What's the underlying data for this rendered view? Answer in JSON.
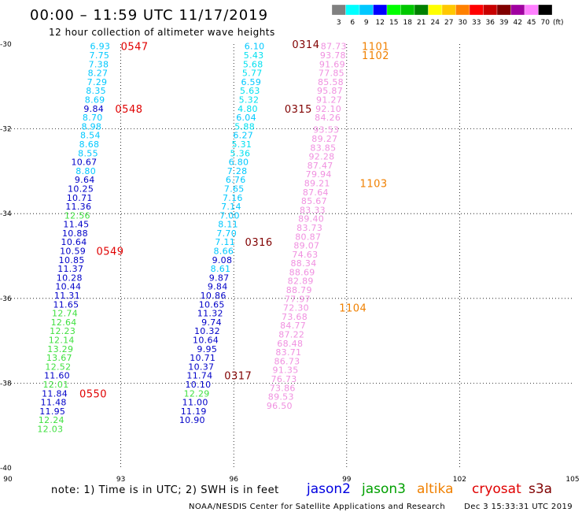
{
  "chart_data": {
    "type": "scatter",
    "title": "00:00 – 11:59 UTC 11/17/2019",
    "subtitle": "12 hour collection of altimeter wave heights",
    "xlim": [
      90,
      105
    ],
    "ylim": [
      -40,
      -30
    ],
    "x_ticks": [
      90,
      93,
      96,
      99,
      102,
      105
    ],
    "x_tick_labels": [
      "90",
      "93",
      "96",
      "99",
      "102",
      "105"
    ],
    "y_ticks": [
      -30,
      -32,
      -34,
      -36,
      -38,
      -40
    ],
    "y_tick_labels": [
      "-30",
      "-32",
      "-34",
      "-36",
      "-38",
      "-40"
    ],
    "grid": "dotted",
    "color_scale": {
      "labels": [
        "3",
        "6",
        "9",
        "12",
        "15",
        "18",
        "21",
        "24",
        "27",
        "30",
        "33",
        "36",
        "39",
        "42",
        "45",
        "70"
      ],
      "colors": [
        "#808080",
        "#00ffff",
        "#00c8ff",
        "#0000ff",
        "#00ff00",
        "#00c800",
        "#008000",
        "#ffff00",
        "#ffc800",
        "#ff8000",
        "#ff0000",
        "#c80000",
        "#800000",
        "#a000a0",
        "#ff80ff",
        "#000000"
      ],
      "unit": "(ft)"
    },
    "tracks": [
      {
        "name": "track-0547",
        "points": [
          {
            "x": 92.72,
            "y": -30.05,
            "v": "6.93",
            "c": "#00c8ff"
          },
          {
            "x": 92.7,
            "y": -30.26,
            "v": "7.75",
            "c": "#00c8ff"
          },
          {
            "x": 92.68,
            "y": -30.47,
            "v": "7.38",
            "c": "#00c8ff"
          },
          {
            "x": 92.66,
            "y": -30.68,
            "v": "8.27",
            "c": "#00c8ff"
          },
          {
            "x": 92.64,
            "y": -30.89,
            "v": "7.29",
            "c": "#00c8ff"
          },
          {
            "x": 92.61,
            "y": -31.1,
            "v": "8.35",
            "c": "#00c8ff"
          },
          {
            "x": 92.58,
            "y": -31.31,
            "v": "8.69",
            "c": "#00c8ff"
          },
          {
            "x": 92.55,
            "y": -31.52,
            "v": "9.84",
            "c": "#0000c8"
          },
          {
            "x": 92.52,
            "y": -31.73,
            "v": "8.70",
            "c": "#00c8ff"
          },
          {
            "x": 92.49,
            "y": -31.94,
            "v": "8.98",
            "c": "#00c8ff"
          },
          {
            "x": 92.46,
            "y": -32.15,
            "v": "8.54",
            "c": "#00c8ff"
          },
          {
            "x": 92.43,
            "y": -32.36,
            "v": "8.68",
            "c": "#00c8ff"
          },
          {
            "x": 92.4,
            "y": -32.57,
            "v": "8.55",
            "c": "#00c8ff"
          },
          {
            "x": 92.37,
            "y": -32.78,
            "v": "10.67",
            "c": "#0000c8"
          },
          {
            "x": 92.34,
            "y": -32.99,
            "v": "8.80",
            "c": "#00c8ff"
          },
          {
            "x": 92.31,
            "y": -33.2,
            "v": "9.64",
            "c": "#0000c8"
          },
          {
            "x": 92.28,
            "y": -33.41,
            "v": "10.25",
            "c": "#0000c8"
          },
          {
            "x": 92.25,
            "y": -33.62,
            "v": "10.71",
            "c": "#0000c8"
          },
          {
            "x": 92.22,
            "y": -33.83,
            "v": "11.36",
            "c": "#0000c8"
          },
          {
            "x": 92.19,
            "y": -34.04,
            "v": "12.56",
            "c": "#40e040"
          },
          {
            "x": 92.16,
            "y": -34.25,
            "v": "11.45",
            "c": "#0000c8"
          },
          {
            "x": 92.13,
            "y": -34.46,
            "v": "10.88",
            "c": "#0000c8"
          },
          {
            "x": 92.1,
            "y": -34.67,
            "v": "10.64",
            "c": "#0000c8"
          },
          {
            "x": 92.07,
            "y": -34.88,
            "v": "10.59",
            "c": "#0000c8"
          },
          {
            "x": 92.04,
            "y": -35.09,
            "v": "10.85",
            "c": "#0000c8"
          },
          {
            "x": 92.01,
            "y": -35.3,
            "v": "11.37",
            "c": "#0000c8"
          },
          {
            "x": 91.98,
            "y": -35.51,
            "v": "10.28",
            "c": "#0000c8"
          },
          {
            "x": 91.95,
            "y": -35.72,
            "v": "10.44",
            "c": "#0000c8"
          },
          {
            "x": 91.92,
            "y": -35.93,
            "v": "11.31",
            "c": "#0000c8"
          },
          {
            "x": 91.89,
            "y": -36.14,
            "v": "11.65",
            "c": "#0000c8"
          },
          {
            "x": 91.86,
            "y": -36.35,
            "v": "12.74",
            "c": "#40e040"
          },
          {
            "x": 91.83,
            "y": -36.56,
            "v": "12.64",
            "c": "#40e040"
          },
          {
            "x": 91.8,
            "y": -36.77,
            "v": "12.23",
            "c": "#40e040"
          },
          {
            "x": 91.77,
            "y": -36.98,
            "v": "12.14",
            "c": "#40e040"
          },
          {
            "x": 91.74,
            "y": -37.19,
            "v": "13.29",
            "c": "#40e040"
          },
          {
            "x": 91.71,
            "y": -37.4,
            "v": "13.67",
            "c": "#40e040"
          },
          {
            "x": 91.68,
            "y": -37.61,
            "v": "12.52",
            "c": "#40e040"
          },
          {
            "x": 91.65,
            "y": -37.82,
            "v": "11.60",
            "c": "#0000c8"
          },
          {
            "x": 91.62,
            "y": -38.03,
            "v": "12.01",
            "c": "#40e040"
          },
          {
            "x": 91.59,
            "y": -38.24,
            "v": "11.84",
            "c": "#0000c8"
          },
          {
            "x": 91.56,
            "y": -38.45,
            "v": "11.48",
            "c": "#0000c8"
          },
          {
            "x": 91.53,
            "y": -38.66,
            "v": "11.95",
            "c": "#0000c8"
          },
          {
            "x": 91.5,
            "y": -38.87,
            "v": "12.24",
            "c": "#40e040"
          },
          {
            "x": 91.47,
            "y": -39.08,
            "v": "12.03",
            "c": "#40e040"
          }
        ]
      },
      {
        "name": "track-0314",
        "points": [
          {
            "x": 96.82,
            "y": -30.05,
            "v": "6.10",
            "c": "#00c8ff"
          },
          {
            "x": 96.8,
            "y": -30.26,
            "v": "5.43",
            "c": "#00e0f0"
          },
          {
            "x": 96.78,
            "y": -30.47,
            "v": "5.68",
            "c": "#00e0f0"
          },
          {
            "x": 96.76,
            "y": -30.68,
            "v": "5.77",
            "c": "#00e0f0"
          },
          {
            "x": 96.73,
            "y": -30.89,
            "v": "6.59",
            "c": "#00c8ff"
          },
          {
            "x": 96.7,
            "y": -31.1,
            "v": "5.63",
            "c": "#00e0f0"
          },
          {
            "x": 96.67,
            "y": -31.31,
            "v": "5.32",
            "c": "#00e0f0"
          },
          {
            "x": 96.64,
            "y": -31.52,
            "v": "4.80",
            "c": "#00e0f0"
          },
          {
            "x": 96.6,
            "y": -31.73,
            "v": "6.04",
            "c": "#00c8ff"
          },
          {
            "x": 96.56,
            "y": -31.94,
            "v": "5.88",
            "c": "#00e0f0"
          },
          {
            "x": 96.52,
            "y": -32.15,
            "v": "6.27",
            "c": "#00c8ff"
          },
          {
            "x": 96.48,
            "y": -32.36,
            "v": "5.31",
            "c": "#00e0f0"
          },
          {
            "x": 96.44,
            "y": -32.57,
            "v": "5.36",
            "c": "#00e0f0"
          },
          {
            "x": 96.4,
            "y": -32.78,
            "v": "6.80",
            "c": "#00c8ff"
          },
          {
            "x": 96.36,
            "y": -32.99,
            "v": "7.28",
            "c": "#00c8ff"
          },
          {
            "x": 96.32,
            "y": -33.2,
            "v": "6.76",
            "c": "#00c8ff"
          },
          {
            "x": 96.28,
            "y": -33.41,
            "v": "7.65",
            "c": "#00c8ff"
          },
          {
            "x": 96.24,
            "y": -33.62,
            "v": "7.16",
            "c": "#00c8ff"
          },
          {
            "x": 96.2,
            "y": -33.83,
            "v": "7.14",
            "c": "#00c8ff"
          },
          {
            "x": 96.16,
            "y": -34.04,
            "v": "7.00",
            "c": "#00c8ff"
          },
          {
            "x": 96.12,
            "y": -34.25,
            "v": "8.11",
            "c": "#00c8ff"
          },
          {
            "x": 96.08,
            "y": -34.46,
            "v": "7.70",
            "c": "#00c8ff"
          },
          {
            "x": 96.04,
            "y": -34.67,
            "v": "7.11",
            "c": "#00c8ff"
          },
          {
            "x": 96.0,
            "y": -34.88,
            "v": "8.66",
            "c": "#00c8ff"
          },
          {
            "x": 95.96,
            "y": -35.09,
            "v": "9.08",
            "c": "#0000c8"
          },
          {
            "x": 95.92,
            "y": -35.3,
            "v": "8.61",
            "c": "#00c8ff"
          },
          {
            "x": 95.88,
            "y": -35.51,
            "v": "9.87",
            "c": "#0000c8"
          },
          {
            "x": 95.84,
            "y": -35.72,
            "v": "9.84",
            "c": "#0000c8"
          },
          {
            "x": 95.8,
            "y": -35.93,
            "v": "10.86",
            "c": "#0000c8"
          },
          {
            "x": 95.76,
            "y": -36.14,
            "v": "10.65",
            "c": "#0000c8"
          },
          {
            "x": 95.72,
            "y": -36.35,
            "v": "11.32",
            "c": "#0000c8"
          },
          {
            "x": 95.68,
            "y": -36.56,
            "v": "9.74",
            "c": "#0000c8"
          },
          {
            "x": 95.64,
            "y": -36.77,
            "v": "10.32",
            "c": "#0000c8"
          },
          {
            "x": 95.6,
            "y": -36.98,
            "v": "10.64",
            "c": "#0000c8"
          },
          {
            "x": 95.56,
            "y": -37.19,
            "v": "9.95",
            "c": "#0000c8"
          },
          {
            "x": 95.52,
            "y": -37.4,
            "v": "10.71",
            "c": "#0000c8"
          },
          {
            "x": 95.48,
            "y": -37.61,
            "v": "10.37",
            "c": "#0000c8"
          },
          {
            "x": 95.44,
            "y": -37.82,
            "v": "11.74",
            "c": "#0000c8"
          },
          {
            "x": 95.4,
            "y": -38.03,
            "v": "10.10",
            "c": "#0000c8"
          },
          {
            "x": 95.36,
            "y": -38.24,
            "v": "12.29",
            "c": "#40e040"
          },
          {
            "x": 95.32,
            "y": -38.45,
            "v": "11.00",
            "c": "#0000c8"
          },
          {
            "x": 95.28,
            "y": -38.66,
            "v": "11.19",
            "c": "#0000c8"
          },
          {
            "x": 95.24,
            "y": -38.87,
            "v": "10.90",
            "c": "#0000c8"
          }
        ]
      },
      {
        "name": "track-1101",
        "points": [
          {
            "x": 99.0,
            "y": -30.05,
            "v": "87.73",
            "c": "#f090e0"
          },
          {
            "x": 98.98,
            "y": -30.26,
            "v": "93.78",
            "c": "#f090e0"
          },
          {
            "x": 98.96,
            "y": -30.47,
            "v": "91.69",
            "c": "#f090e0"
          },
          {
            "x": 98.94,
            "y": -30.68,
            "v": "77.85",
            "c": "#f090e0"
          },
          {
            "x": 98.92,
            "y": -30.89,
            "v": "85.58",
            "c": "#f090e0"
          },
          {
            "x": 98.9,
            "y": -31.1,
            "v": "95.87",
            "c": "#f090e0"
          },
          {
            "x": 98.88,
            "y": -31.31,
            "v": "91.27",
            "c": "#f090e0"
          },
          {
            "x": 98.86,
            "y": -31.52,
            "v": "92.10",
            "c": "#f090e0"
          },
          {
            "x": 98.84,
            "y": -31.73,
            "v": "84.26",
            "c": "#f090e0"
          },
          {
            "x": 98.8,
            "y": -32.02,
            "v": "93.53",
            "c": "#f090e0"
          },
          {
            "x": 98.76,
            "y": -32.23,
            "v": "89.27",
            "c": "#f090e0"
          },
          {
            "x": 98.72,
            "y": -32.44,
            "v": "83.85",
            "c": "#f090e0"
          },
          {
            "x": 98.68,
            "y": -32.65,
            "v": "92.28",
            "c": "#f090e0"
          },
          {
            "x": 98.64,
            "y": -32.86,
            "v": "87.47",
            "c": "#f090e0"
          },
          {
            "x": 98.6,
            "y": -33.07,
            "v": "79.94",
            "c": "#f090e0"
          },
          {
            "x": 98.56,
            "y": -33.28,
            "v": "89.21",
            "c": "#f090e0"
          },
          {
            "x": 98.52,
            "y": -33.49,
            "v": "87.64",
            "c": "#f090e0"
          },
          {
            "x": 98.48,
            "y": -33.7,
            "v": "85.67",
            "c": "#f090e0"
          },
          {
            "x": 98.44,
            "y": -33.91,
            "v": "83.33",
            "c": "#f090e0"
          },
          {
            "x": 98.4,
            "y": -34.12,
            "v": "89.40",
            "c": "#f090e0"
          },
          {
            "x": 98.36,
            "y": -34.33,
            "v": "83.73",
            "c": "#f090e0"
          },
          {
            "x": 98.32,
            "y": -34.54,
            "v": "80.87",
            "c": "#f090e0"
          },
          {
            "x": 98.28,
            "y": -34.75,
            "v": "89.07",
            "c": "#f090e0"
          },
          {
            "x": 98.24,
            "y": -34.96,
            "v": "74.63",
            "c": "#f090e0"
          },
          {
            "x": 98.2,
            "y": -35.17,
            "v": "88.34",
            "c": "#f090e0"
          },
          {
            "x": 98.16,
            "y": -35.38,
            "v": "88.69",
            "c": "#f090e0"
          },
          {
            "x": 98.12,
            "y": -35.59,
            "v": "82.89",
            "c": "#f090e0"
          },
          {
            "x": 98.08,
            "y": -35.8,
            "v": "88.79",
            "c": "#f090e0"
          },
          {
            "x": 98.04,
            "y": -36.01,
            "v": "77.97",
            "c": "#f090e0"
          },
          {
            "x": 98.0,
            "y": -36.22,
            "v": "72.30",
            "c": "#f090e0"
          },
          {
            "x": 97.96,
            "y": -36.43,
            "v": "73.68",
            "c": "#f090e0"
          },
          {
            "x": 97.92,
            "y": -36.64,
            "v": "84.77",
            "c": "#f090e0"
          },
          {
            "x": 97.88,
            "y": -36.85,
            "v": "87.22",
            "c": "#f090e0"
          },
          {
            "x": 97.84,
            "y": -37.06,
            "v": "68.48",
            "c": "#f090e0"
          },
          {
            "x": 97.8,
            "y": -37.27,
            "v": "83.71",
            "c": "#f090e0"
          },
          {
            "x": 97.76,
            "y": -37.48,
            "v": "86.73",
            "c": "#f090e0"
          },
          {
            "x": 97.72,
            "y": -37.69,
            "v": "91.35",
            "c": "#f090e0"
          },
          {
            "x": 97.68,
            "y": -37.9,
            "v": "76.73",
            "c": "#f090e0"
          },
          {
            "x": 97.64,
            "y": -38.11,
            "v": "73.86",
            "c": "#f090e0"
          },
          {
            "x": 97.6,
            "y": -38.32,
            "v": "89.53",
            "c": "#f090e0"
          },
          {
            "x": 97.56,
            "y": -38.53,
            "v": "96.50",
            "c": "#f090e0"
          }
        ]
      }
    ],
    "time_labels": [
      {
        "x": 93.0,
        "y": -30.05,
        "text": "0547",
        "c": "#e00000"
      },
      {
        "x": 92.85,
        "y": -31.52,
        "text": "0548",
        "c": "#e00000"
      },
      {
        "x": 92.35,
        "y": -34.88,
        "text": "0549",
        "c": "#e00000"
      },
      {
        "x": 91.9,
        "y": -38.24,
        "text": "0550",
        "c": "#e00000"
      },
      {
        "x": 97.55,
        "y": -30.0,
        "text": "0314",
        "c": "#800000"
      },
      {
        "x": 97.35,
        "y": -31.52,
        "text": "0315",
        "c": "#800000"
      },
      {
        "x": 96.3,
        "y": -34.67,
        "text": "0316",
        "c": "#800000"
      },
      {
        "x": 95.75,
        "y": -37.82,
        "text": "0317",
        "c": "#800000"
      },
      {
        "x": 99.4,
        "y": -30.05,
        "text": "1101",
        "c": "#f08000"
      },
      {
        "x": 99.4,
        "y": -30.26,
        "text": "1102",
        "c": "#f08000"
      },
      {
        "x": 99.35,
        "y": -33.28,
        "text": "1103",
        "c": "#f08000"
      },
      {
        "x": 98.8,
        "y": -36.22,
        "text": "1104",
        "c": "#f08000"
      }
    ]
  },
  "footer": {
    "note": "note:  1) Time is in UTC;  2) SWH is in feet",
    "satellites": [
      {
        "name": "jason2",
        "color": "#0000e0"
      },
      {
        "name": "jason3",
        "color": "#00a000"
      },
      {
        "name": "altika",
        "color": "#f08000"
      },
      {
        "name": "cryosat",
        "color": "#e00000"
      },
      {
        "name": "s3a",
        "color": "#800000"
      }
    ],
    "credit_left": "NOAA/NESDIS Center for Satellite Applications and Research",
    "credit_right": "Dec  3 15:33:31 UTC 2019"
  }
}
